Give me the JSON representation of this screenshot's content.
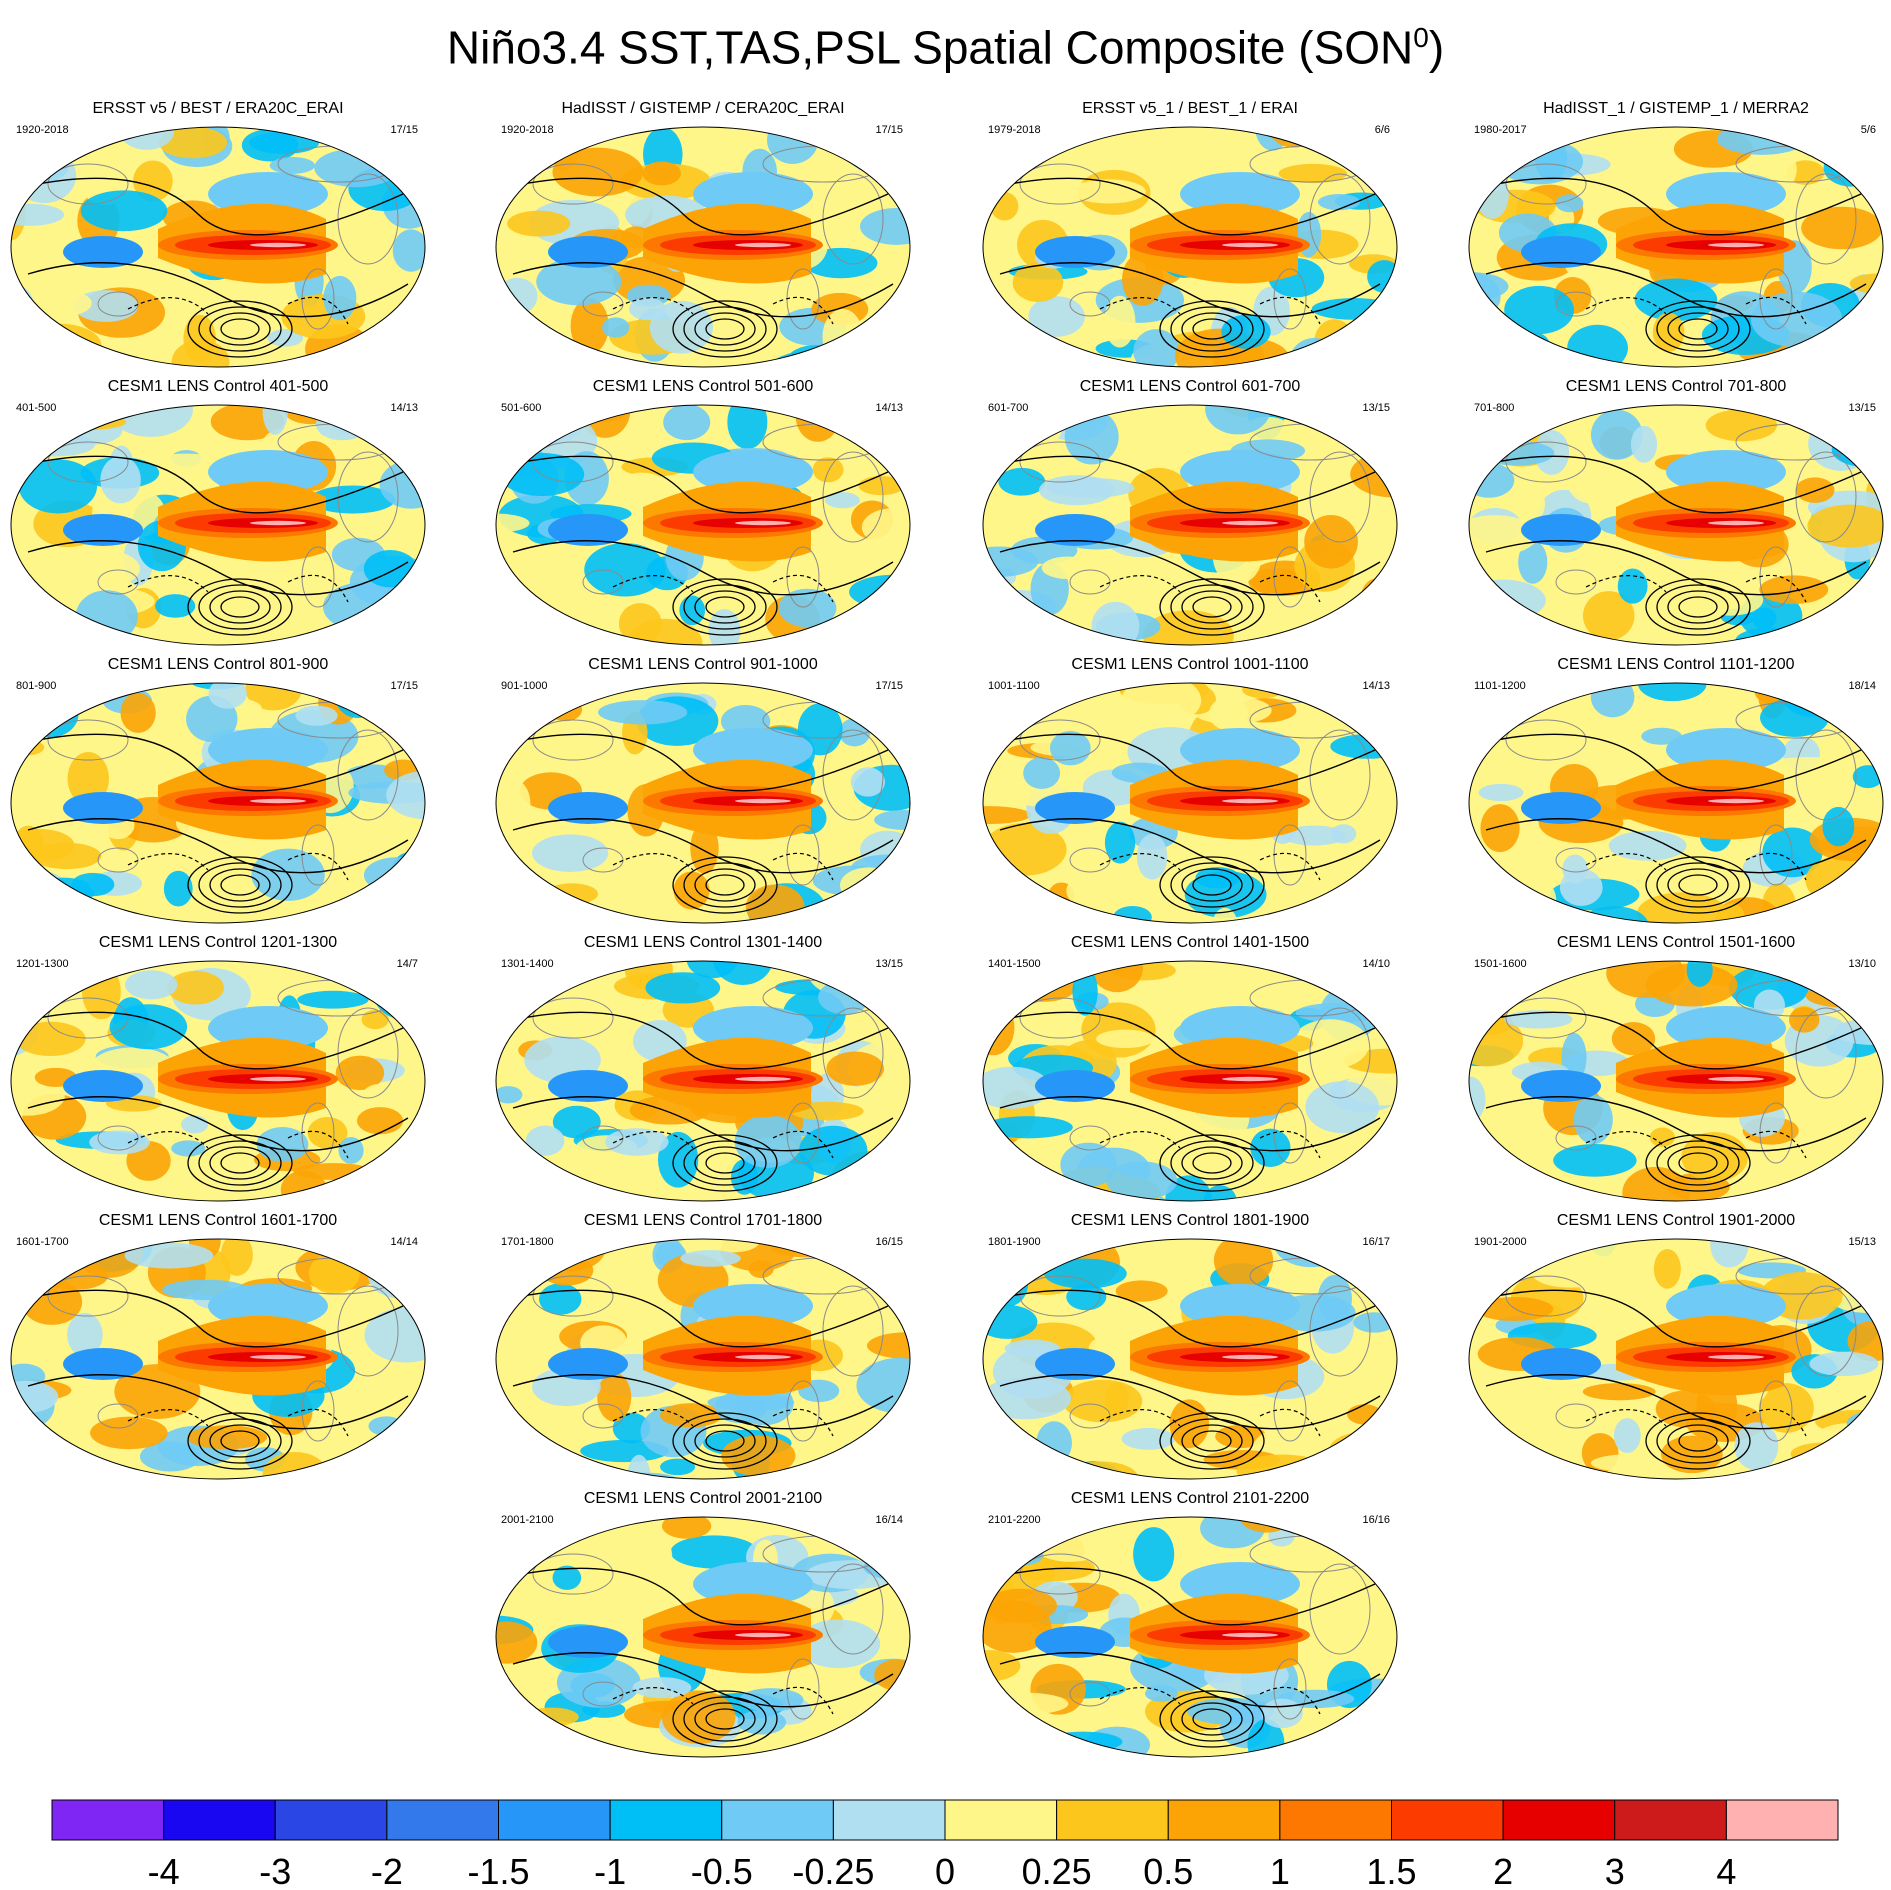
{
  "title": {
    "main": "Niño3.4 SST,TAS,PSL Spatial Composite (SON",
    "sup": "0",
    "close": ")"
  },
  "chart_data": {
    "type": "heatmap",
    "description_colorbar_levels": [
      "-4",
      "-3",
      "-2",
      "-1.5",
      "-1",
      "-0.5",
      "-0.25",
      "0",
      "0.25",
      "0.5",
      "1",
      "1.5",
      "2",
      "3",
      "4"
    ],
    "colorbar_colors": [
      "#7f26f5",
      "#1a07f2",
      "#2a47e6",
      "#3479ec",
      "#2697f8",
      "#00bff7",
      "#6fcbf5",
      "#b0dff2",
      "#fff68a",
      "#fdc61c",
      "#fca405",
      "#fc7800",
      "#fb3b00",
      "#e60000",
      "#cd1b1b",
      "#ffb0b0"
    ],
    "panels": [
      {
        "title": "ERSST v5 / BEST / ERA20C_ERAI",
        "period": "1920-2018",
        "count": "17/15"
      },
      {
        "title": "HadISST / GISTEMP / CERA20C_ERAI",
        "period": "1920-2018",
        "count": "17/15"
      },
      {
        "title": "ERSST v5_1 / BEST_1 / ERAI",
        "period": "1979-2018",
        "count": "6/6"
      },
      {
        "title": "HadISST_1 / GISTEMP_1 / MERRA2",
        "period": "1980-2017",
        "count": "5/6"
      },
      {
        "title": "CESM1 LENS Control 401-500",
        "period": "401-500",
        "count": "14/13"
      },
      {
        "title": "CESM1 LENS Control 501-600",
        "period": "501-600",
        "count": "14/13"
      },
      {
        "title": "CESM1 LENS Control 601-700",
        "period": "601-700",
        "count": "13/15"
      },
      {
        "title": "CESM1 LENS Control 701-800",
        "period": "701-800",
        "count": "13/15"
      },
      {
        "title": "CESM1 LENS Control 801-900",
        "period": "801-900",
        "count": "17/15"
      },
      {
        "title": "CESM1 LENS Control 901-1000",
        "period": "901-1000",
        "count": "17/15"
      },
      {
        "title": "CESM1 LENS Control 1001-1100",
        "period": "1001-1100",
        "count": "14/13"
      },
      {
        "title": "CESM1 LENS Control 1101-1200",
        "period": "1101-1200",
        "count": "18/14"
      },
      {
        "title": "CESM1 LENS Control 1201-1300",
        "period": "1201-1300",
        "count": "14/7"
      },
      {
        "title": "CESM1 LENS Control 1301-1400",
        "period": "1301-1400",
        "count": "13/15"
      },
      {
        "title": "CESM1 LENS Control 1401-1500",
        "period": "1401-1500",
        "count": "14/10"
      },
      {
        "title": "CESM1 LENS Control 1501-1600",
        "period": "1501-1600",
        "count": "13/10"
      },
      {
        "title": "CESM1 LENS Control 1601-1700",
        "period": "1601-1700",
        "count": "14/14"
      },
      {
        "title": "CESM1 LENS Control 1701-1800",
        "period": "1701-1800",
        "count": "16/15"
      },
      {
        "title": "CESM1 LENS Control 1801-1900",
        "period": "1801-1900",
        "count": "16/17"
      },
      {
        "title": "CESM1 LENS Control 1901-2000",
        "period": "1901-2000",
        "count": "15/13"
      },
      {
        "title": "CESM1 LENS Control 2001-2100",
        "period": "2001-2100",
        "count": "16/14"
      },
      {
        "title": "CESM1 LENS Control 2101-2200",
        "period": "2101-2200",
        "count": "16/16"
      }
    ]
  }
}
